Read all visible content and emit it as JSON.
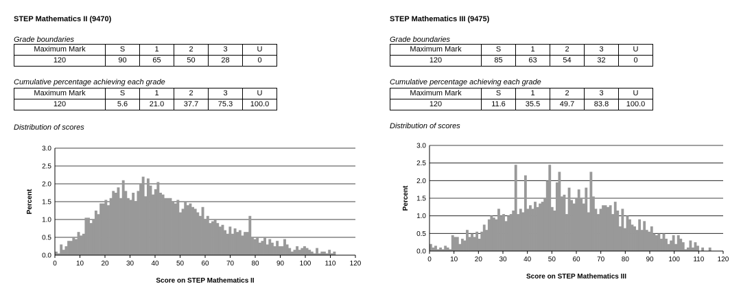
{
  "colors": {
    "bar": "#999999",
    "grid": "#000000"
  },
  "left": {
    "title": "STEP Mathematics II (9470)",
    "grade_boundaries": {
      "caption": "Grade boundaries",
      "header": [
        "Maximum Mark",
        "S",
        "1",
        "2",
        "3",
        "U"
      ],
      "row": [
        "120",
        "90",
        "65",
        "50",
        "28",
        "0"
      ]
    },
    "cumulative": {
      "caption": "Cumulative percentage achieving each grade",
      "header": [
        "Maximum Mark",
        "S",
        "1",
        "2",
        "3",
        "U"
      ],
      "row": [
        "120",
        "5.6",
        "21.0",
        "37.7",
        "75.3",
        "100.0"
      ]
    },
    "distribution_caption": "Distribution of scores"
  },
  "right": {
    "title": "STEP Mathematics III (9475)",
    "grade_boundaries": {
      "caption": "Grade boundaries",
      "header": [
        "Maximum Mark",
        "S",
        "1",
        "2",
        "3",
        "U"
      ],
      "row": [
        "120",
        "85",
        "63",
        "54",
        "32",
        "0"
      ]
    },
    "cumulative": {
      "caption": "Cumulative percentage achieving each grade",
      "header": [
        "Maximum Mark",
        "S",
        "1",
        "2",
        "3",
        "U"
      ],
      "row": [
        "120",
        "11.6",
        "35.5",
        "49.7",
        "83.8",
        "100.0"
      ]
    },
    "distribution_caption": "Distribution of scores"
  },
  "chart_data": [
    {
      "type": "bar",
      "xlabel": "Score on STEP Mathematics II",
      "ylabel": "Percent",
      "xlim": [
        0,
        120
      ],
      "ylim": [
        0,
        3.0
      ],
      "xticks": [
        0,
        10,
        20,
        30,
        40,
        50,
        60,
        70,
        80,
        90,
        100,
        110,
        120
      ],
      "yticks": [
        "0.0",
        "0.5",
        "1.0",
        "1.5",
        "2.0",
        "2.5",
        "3.0"
      ],
      "grid": "horizontal",
      "x": [
        0,
        1,
        2,
        3,
        4,
        5,
        6,
        7,
        8,
        9,
        10,
        11,
        12,
        13,
        14,
        15,
        16,
        17,
        18,
        19,
        20,
        21,
        22,
        23,
        24,
        25,
        26,
        27,
        28,
        29,
        30,
        31,
        32,
        33,
        34,
        35,
        36,
        37,
        38,
        39,
        40,
        41,
        42,
        43,
        44,
        45,
        46,
        47,
        48,
        49,
        50,
        51,
        52,
        53,
        54,
        55,
        56,
        57,
        58,
        59,
        60,
        61,
        62,
        63,
        64,
        65,
        66,
        67,
        68,
        69,
        70,
        71,
        72,
        73,
        74,
        75,
        76,
        77,
        78,
        79,
        80,
        81,
        82,
        83,
        84,
        85,
        86,
        87,
        88,
        89,
        90,
        91,
        92,
        93,
        94,
        95,
        96,
        97,
        98,
        99,
        100,
        101,
        102,
        103,
        104,
        105,
        106,
        107,
        108,
        109,
        110,
        111,
        112,
        113,
        114,
        115,
        116,
        117,
        118,
        119,
        120
      ],
      "values": [
        0.1,
        0.05,
        0.3,
        0.15,
        0.25,
        0.4,
        0.4,
        0.5,
        0.45,
        0.65,
        0.55,
        0.6,
        1.05,
        1.05,
        0.9,
        1.0,
        1.25,
        1.15,
        1.45,
        1.45,
        1.55,
        1.4,
        1.6,
        1.8,
        1.75,
        1.9,
        1.6,
        2.1,
        1.8,
        1.6,
        1.55,
        1.75,
        1.5,
        1.8,
        2.0,
        2.2,
        1.65,
        2.15,
        1.95,
        1.7,
        1.85,
        2.05,
        1.75,
        1.7,
        1.6,
        1.6,
        1.6,
        1.5,
        1.45,
        1.55,
        1.2,
        1.3,
        1.5,
        1.4,
        1.45,
        1.35,
        1.3,
        1.2,
        1.1,
        1.35,
        1.0,
        1.1,
        0.9,
        0.95,
        1.0,
        0.9,
        0.8,
        0.85,
        0.7,
        0.6,
        0.8,
        0.6,
        0.75,
        0.65,
        0.7,
        0.55,
        0.65,
        0.65,
        1.1,
        0.5,
        0.45,
        0.5,
        0.35,
        0.4,
        0.5,
        0.3,
        0.45,
        0.35,
        0.25,
        0.4,
        0.25,
        0.25,
        0.45,
        0.3,
        0.2,
        0.1,
        0.15,
        0.25,
        0.15,
        0.2,
        0.25,
        0.2,
        0.15,
        0.1,
        0.05,
        0.2,
        0.05,
        0.1,
        0.1,
        0.05,
        0.15,
        0.05,
        0.1,
        0.0,
        0.0,
        0.0,
        0.0,
        0.0,
        0.0,
        0.0,
        0.0
      ]
    },
    {
      "type": "bar",
      "xlabel": "Score on STEP Mathematics III",
      "ylabel": "Percent",
      "xlim": [
        0,
        120
      ],
      "ylim": [
        0,
        3.0
      ],
      "xticks": [
        0,
        10,
        20,
        30,
        40,
        50,
        60,
        70,
        80,
        90,
        100,
        110,
        120
      ],
      "yticks": [
        "0.0",
        "0.5",
        "1.0",
        "1.5",
        "2.0",
        "2.5",
        "3.0"
      ],
      "grid": "horizontal",
      "x": [
        0,
        1,
        2,
        3,
        4,
        5,
        6,
        7,
        8,
        9,
        10,
        11,
        12,
        13,
        14,
        15,
        16,
        17,
        18,
        19,
        20,
        21,
        22,
        23,
        24,
        25,
        26,
        27,
        28,
        29,
        30,
        31,
        32,
        33,
        34,
        35,
        36,
        37,
        38,
        39,
        40,
        41,
        42,
        43,
        44,
        45,
        46,
        47,
        48,
        49,
        50,
        51,
        52,
        53,
        54,
        55,
        56,
        57,
        58,
        59,
        60,
        61,
        62,
        63,
        64,
        65,
        66,
        67,
        68,
        69,
        70,
        71,
        72,
        73,
        74,
        75,
        76,
        77,
        78,
        79,
        80,
        81,
        82,
        83,
        84,
        85,
        86,
        87,
        88,
        89,
        90,
        91,
        92,
        93,
        94,
        95,
        96,
        97,
        98,
        99,
        100,
        101,
        102,
        103,
        104,
        105,
        106,
        107,
        108,
        109,
        110,
        111,
        112,
        113,
        114,
        115,
        116,
        117,
        118,
        119,
        120
      ],
      "values": [
        0.2,
        0.1,
        0.15,
        0.05,
        0.1,
        0.05,
        0.15,
        0.1,
        0.05,
        0.45,
        0.4,
        0.4,
        0.2,
        0.35,
        0.3,
        0.6,
        0.4,
        0.5,
        0.4,
        0.55,
        0.35,
        0.55,
        0.75,
        0.6,
        0.9,
        1.0,
        0.95,
        0.9,
        1.2,
        1.0,
        1.05,
        0.85,
        1.0,
        1.05,
        1.15,
        2.45,
        1.05,
        1.2,
        1.1,
        2.15,
        1.2,
        1.3,
        1.2,
        1.4,
        1.25,
        1.35,
        1.4,
        1.5,
        2.0,
        2.45,
        1.25,
        1.15,
        1.95,
        2.25,
        1.55,
        1.6,
        1.05,
        1.8,
        1.45,
        1.35,
        1.5,
        1.75,
        1.5,
        1.35,
        1.8,
        1.1,
        2.25,
        1.55,
        1.2,
        1.05,
        1.2,
        1.3,
        1.3,
        1.25,
        1.3,
        1.05,
        1.4,
        1.15,
        0.7,
        1.2,
        0.65,
        1.0,
        0.9,
        0.75,
        0.7,
        0.6,
        0.9,
        0.6,
        0.85,
        0.6,
        0.55,
        0.7,
        0.5,
        0.45,
        0.5,
        0.35,
        0.5,
        0.35,
        0.2,
        0.3,
        0.45,
        0.2,
        0.45,
        0.35,
        0.25,
        0.05,
        0.1,
        0.3,
        0.1,
        0.25,
        0.15,
        0.0,
        0.1,
        0.0,
        0.0,
        0.1,
        0.0,
        0.0,
        0.0,
        0.0,
        0.0
      ]
    }
  ]
}
